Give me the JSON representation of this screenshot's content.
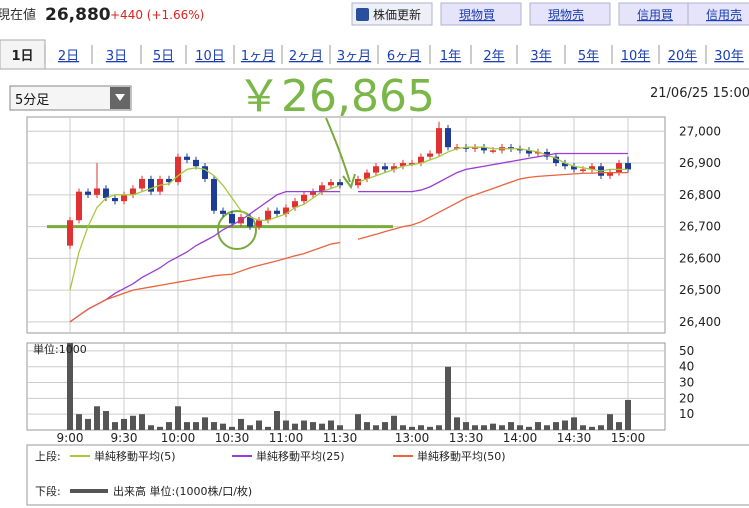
{
  "header": {
    "label": "現在値",
    "price": "26,880",
    "change": "+440 (+1.66%)",
    "buttons": [
      "株価更新",
      "現物買",
      "現物売",
      "信用買",
      "信用売"
    ]
  },
  "tabs": [
    "1日",
    "2日",
    "3日",
    "5日",
    "10日",
    "1ヶ月",
    "2ヶ月",
    "3ヶ月",
    "6ヶ月",
    "1年",
    "2年",
    "3年",
    "5年",
    "10年",
    "20年",
    "30年"
  ],
  "interval": "5分足",
  "date": "21/06/25 15:00",
  "legend": {
    "upper": "上段:",
    "lower": "下段:"
  },
  "chart_data": [
    {
      "type": "candlestick",
      "annotation": "￥26,865",
      "hline": 26700,
      "up_color": "#e03232",
      "down_color": "#1c3c96",
      "grid": true,
      "open": [
        26640,
        26720,
        26810,
        26800,
        26820,
        26790,
        26780,
        26800,
        26820,
        26850,
        26810,
        26850,
        26840,
        26920,
        26910,
        26890,
        26850,
        26750,
        26740,
        26710,
        26730,
        26700,
        26720,
        26750,
        26740,
        26760,
        26780,
        26800,
        26810,
        26830,
        26840,
        null,
        26830,
        26850,
        26870,
        26890,
        26880,
        26890,
        26900,
        26900,
        26920,
        26930,
        27010,
        26950,
        26950,
        26945,
        26950,
        26940,
        26940,
        26950,
        26945,
        26940,
        26930,
        26935,
        26920,
        26900,
        26890,
        26880,
        26880,
        26890,
        26860,
        26870,
        26900
      ],
      "high": [
        26730,
        26820,
        26820,
        26900,
        26830,
        26800,
        26810,
        26830,
        26860,
        26860,
        26860,
        26860,
        26930,
        26930,
        26920,
        26900,
        26860,
        26760,
        26750,
        26740,
        26740,
        26730,
        26760,
        26760,
        26770,
        26790,
        26810,
        26820,
        26840,
        26850,
        26850,
        null,
        26860,
        26880,
        26900,
        26900,
        26900,
        26910,
        26910,
        26930,
        26940,
        27030,
        27020,
        26960,
        26960,
        26960,
        26960,
        26950,
        26960,
        26960,
        26955,
        26950,
        26945,
        26945,
        26930,
        26910,
        26900,
        26890,
        26900,
        26900,
        26880,
        26910,
        26920
      ],
      "low": [
        26630,
        26710,
        26790,
        26790,
        26780,
        26770,
        26770,
        26790,
        26810,
        26800,
        26800,
        26830,
        26830,
        26900,
        26880,
        26840,
        26740,
        26730,
        26700,
        26700,
        26690,
        26690,
        26710,
        26730,
        26730,
        26750,
        26770,
        26790,
        26800,
        26820,
        26820,
        null,
        26820,
        26840,
        26860,
        26870,
        26870,
        26880,
        26890,
        26890,
        26910,
        26920,
        26940,
        26940,
        26935,
        26935,
        26930,
        26930,
        26930,
        26935,
        26930,
        26920,
        26920,
        26910,
        26890,
        26880,
        26870,
        26870,
        26870,
        26850,
        26850,
        26860,
        26870
      ],
      "close": [
        26720,
        26810,
        26800,
        26820,
        26790,
        26780,
        26800,
        26820,
        26850,
        26810,
        26850,
        26840,
        26920,
        26910,
        26890,
        26850,
        26750,
        26740,
        26710,
        26730,
        26700,
        26720,
        26750,
        26740,
        26760,
        26780,
        26800,
        26810,
        26830,
        26840,
        26830,
        null,
        26850,
        26870,
        26890,
        26880,
        26890,
        26900,
        26900,
        26920,
        26930,
        27010,
        26950,
        26950,
        26945,
        26950,
        26940,
        26940,
        26950,
        26945,
        26940,
        26930,
        26935,
        26920,
        26900,
        26890,
        26880,
        26880,
        26890,
        26860,
        26870,
        26900,
        26880
      ],
      "series": [
        {
          "name": "単純移動平均(5)",
          "color": "#a8c83c",
          "values": [
            26500,
            26620,
            26700,
            26760,
            26790,
            26800,
            26800,
            26800,
            26810,
            26820,
            26830,
            26835,
            26860,
            26880,
            26885,
            26880,
            26860,
            26830,
            26790,
            26750,
            26730,
            26720,
            26720,
            26730,
            26740,
            26760,
            26770,
            26790,
            26810,
            26820,
            26830,
            null,
            26840,
            26850,
            26860,
            26870,
            26880,
            26890,
            26895,
            26900,
            26910,
            26920,
            26935,
            26945,
            26950,
            26950,
            26950,
            26945,
            26945,
            26945,
            26945,
            26940,
            26935,
            26925,
            26915,
            26900,
            26890,
            26885,
            26880,
            26875,
            26880,
            26880,
            26880
          ]
        },
        {
          "name": "単純移動平均(25)",
          "color": "#9a3cd6",
          "values": [
            26400,
            26420,
            26440,
            26455,
            26470,
            26490,
            26505,
            26520,
            26540,
            26555,
            26570,
            26590,
            26605,
            26620,
            26640,
            26655,
            26670,
            26690,
            26705,
            26720,
            26740,
            26760,
            26780,
            26800,
            26810,
            26810,
            26810,
            26810,
            26810,
            26810,
            26810,
            null,
            26810,
            26810,
            26810,
            26810,
            26810,
            26810,
            26810,
            26815,
            26825,
            26840,
            26855,
            26870,
            26880,
            26885,
            26890,
            26895,
            26900,
            26905,
            26910,
            26915,
            26920,
            26925,
            26930,
            26930,
            26930,
            26930,
            26930,
            26930,
            26930,
            26930,
            26930
          ]
        },
        {
          "name": "単純移動平均(50)",
          "color": "#e8643c",
          "values": [
            26400,
            26420,
            26440,
            26455,
            26470,
            26480,
            26490,
            26500,
            26505,
            26510,
            26515,
            26520,
            26525,
            26530,
            26535,
            26540,
            26545,
            26548,
            26550,
            26560,
            26570,
            26578,
            26585,
            26592,
            26600,
            26608,
            26615,
            26625,
            26635,
            26645,
            26650,
            null,
            26660,
            26668,
            26676,
            26684,
            26692,
            26700,
            26705,
            26715,
            26730,
            26745,
            26760,
            26775,
            26790,
            26800,
            26810,
            26820,
            26830,
            26840,
            26850,
            26855,
            26858,
            26860,
            26862,
            26864,
            26866,
            26868,
            26868,
            26870,
            26870,
            26870,
            26870
          ]
        }
      ],
      "ylim": [
        26365,
        27045
      ],
      "yticks": [
        {
          "value": 26400,
          "label": "26,400"
        },
        {
          "value": 26500,
          "label": "26,500"
        },
        {
          "value": 26600,
          "label": "26,600"
        },
        {
          "value": 26700,
          "label": "26,700"
        },
        {
          "value": 26800,
          "label": "26,800"
        },
        {
          "value": 26900,
          "label": "26,900"
        },
        {
          "value": 27000,
          "label": "27,000"
        }
      ]
    },
    {
      "type": "bar",
      "unit_label": "単位:1000",
      "grid": true,
      "categories": [
        "9:00",
        null,
        null,
        null,
        null,
        null,
        "9:30",
        null,
        null,
        null,
        null,
        null,
        "10:00",
        null,
        null,
        null,
        null,
        null,
        "10:30",
        null,
        null,
        null,
        null,
        null,
        "11:00",
        null,
        null,
        null,
        null,
        null,
        "11:30",
        null,
        null,
        null,
        null,
        null,
        null,
        null,
        "13:00",
        null,
        null,
        null,
        null,
        null,
        "13:30",
        null,
        null,
        null,
        null,
        null,
        "14:00",
        null,
        null,
        null,
        null,
        null,
        "14:30",
        null,
        null,
        null,
        null,
        null,
        "15:00"
      ],
      "series": [
        {
          "name": "出来高 単位:(1000株/口/枚)",
          "color": "#555555",
          "values": [
            55,
            10,
            7,
            15,
            12,
            5,
            7,
            9,
            10,
            3,
            2,
            5,
            15,
            5,
            5,
            8,
            5,
            4,
            2,
            7,
            3,
            6,
            2,
            12,
            6,
            4,
            6,
            5,
            4,
            6,
            3,
            null,
            10,
            5,
            3,
            5,
            9,
            3,
            2,
            3,
            2,
            3,
            40,
            8,
            5,
            3,
            3,
            4,
            3,
            5,
            3,
            2,
            5,
            3,
            5,
            6,
            8,
            3,
            2,
            3,
            10,
            5,
            19
          ]
        }
      ],
      "ylim": [
        0,
        55
      ],
      "yticks": [
        10,
        20,
        30,
        40,
        50
      ]
    }
  ]
}
